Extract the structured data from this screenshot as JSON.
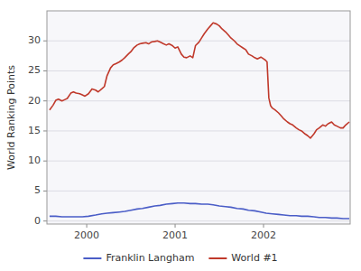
{
  "chart_data": {
    "type": "line",
    "ylabel": "World Ranking Points",
    "xlim": [
      1999.55,
      2002.98
    ],
    "xticks": [
      2000,
      2001,
      2002
    ],
    "ylim": [
      -0.5,
      35
    ],
    "yticks": [
      0,
      5,
      10,
      15,
      20,
      25,
      30
    ],
    "grid": true,
    "legend": "bottom",
    "series": [
      {
        "name": "Franklin Langham",
        "color": "#4a5dc7",
        "x": [
          1999.58,
          1999.65,
          1999.72,
          1999.8,
          1999.88,
          1999.95,
          2000.02,
          2000.1,
          2000.17,
          2000.23,
          2000.3,
          2000.37,
          2000.43,
          2000.5,
          2000.57,
          2000.63,
          2000.7,
          2000.77,
          2000.83,
          2000.9,
          2000.97,
          2001.03,
          2001.1,
          2001.17,
          2001.23,
          2001.3,
          2001.37,
          2001.43,
          2001.5,
          2001.57,
          2001.63,
          2001.7,
          2001.77,
          2001.83,
          2001.9,
          2001.97,
          2002.03,
          2002.1,
          2002.17,
          2002.23,
          2002.3,
          2002.37,
          2002.43,
          2002.5,
          2002.57,
          2002.63,
          2002.7,
          2002.77,
          2002.83,
          2002.9,
          2002.97
        ],
        "values": [
          0.8,
          0.8,
          0.7,
          0.7,
          0.7,
          0.7,
          0.8,
          1.0,
          1.2,
          1.3,
          1.4,
          1.5,
          1.6,
          1.8,
          2.0,
          2.1,
          2.3,
          2.5,
          2.6,
          2.8,
          2.9,
          3.0,
          3.0,
          2.9,
          2.9,
          2.8,
          2.8,
          2.7,
          2.5,
          2.4,
          2.3,
          2.1,
          2.0,
          1.8,
          1.7,
          1.5,
          1.3,
          1.2,
          1.1,
          1.0,
          0.9,
          0.9,
          0.8,
          0.8,
          0.7,
          0.6,
          0.6,
          0.5,
          0.5,
          0.4,
          0.4
        ]
      },
      {
        "name": "World #1",
        "color": "#c0392b",
        "x": [
          1999.58,
          1999.62,
          1999.65,
          1999.68,
          1999.72,
          1999.75,
          1999.78,
          1999.82,
          1999.85,
          1999.88,
          1999.92,
          1999.95,
          1999.98,
          2000.02,
          2000.06,
          2000.1,
          2000.13,
          2000.17,
          2000.2,
          2000.23,
          2000.27,
          2000.3,
          2000.33,
          2000.37,
          2000.4,
          2000.43,
          2000.47,
          2000.5,
          2000.53,
          2000.57,
          2000.6,
          2000.63,
          2000.67,
          2000.7,
          2000.73,
          2000.77,
          2000.8,
          2000.83,
          2000.87,
          2000.9,
          2000.93,
          2000.97,
          2001.0,
          2001.03,
          2001.07,
          2001.1,
          2001.13,
          2001.17,
          2001.2,
          2001.23,
          2001.27,
          2001.3,
          2001.33,
          2001.37,
          2001.4,
          2001.43,
          2001.47,
          2001.5,
          2001.53,
          2001.57,
          2001.6,
          2001.63,
          2001.67,
          2001.7,
          2001.73,
          2001.77,
          2001.8,
          2001.83,
          2001.87,
          2001.9,
          2001.93,
          2001.97,
          2002.0,
          2002.02,
          2002.04,
          2002.06,
          2002.08,
          2002.1,
          2002.13,
          2002.17,
          2002.2,
          2002.23,
          2002.27,
          2002.3,
          2002.33,
          2002.37,
          2002.4,
          2002.43,
          2002.47,
          2002.5,
          2002.53,
          2002.57,
          2002.6,
          2002.63,
          2002.67,
          2002.7,
          2002.73,
          2002.77,
          2002.8,
          2002.83,
          2002.87,
          2002.9,
          2002.93,
          2002.97
        ],
        "values": [
          18.5,
          19.3,
          20.1,
          20.3,
          20.0,
          20.2,
          20.4,
          21.3,
          21.5,
          21.3,
          21.2,
          21.0,
          20.8,
          21.2,
          22.0,
          21.8,
          21.5,
          22.0,
          22.4,
          24.2,
          25.5,
          26.0,
          26.2,
          26.5,
          26.8,
          27.2,
          27.8,
          28.2,
          28.8,
          29.3,
          29.5,
          29.6,
          29.7,
          29.5,
          29.8,
          29.9,
          30.0,
          29.8,
          29.5,
          29.3,
          29.5,
          29.2,
          28.8,
          29.0,
          27.8,
          27.3,
          27.2,
          27.5,
          27.2,
          29.2,
          29.8,
          30.5,
          31.2,
          32.0,
          32.5,
          33.0,
          32.8,
          32.5,
          32.0,
          31.5,
          31.0,
          30.5,
          30.0,
          29.5,
          29.2,
          28.8,
          28.5,
          27.8,
          27.5,
          27.2,
          27.0,
          27.3,
          27.0,
          26.8,
          26.5,
          20.5,
          19.2,
          18.8,
          18.5,
          18.0,
          17.5,
          17.0,
          16.5,
          16.2,
          16.0,
          15.5,
          15.2,
          15.0,
          14.5,
          14.2,
          13.8,
          14.5,
          15.2,
          15.5,
          16.0,
          15.8,
          16.2,
          16.5,
          16.0,
          15.8,
          15.5,
          15.5,
          16.0,
          16.5
        ]
      }
    ]
  }
}
